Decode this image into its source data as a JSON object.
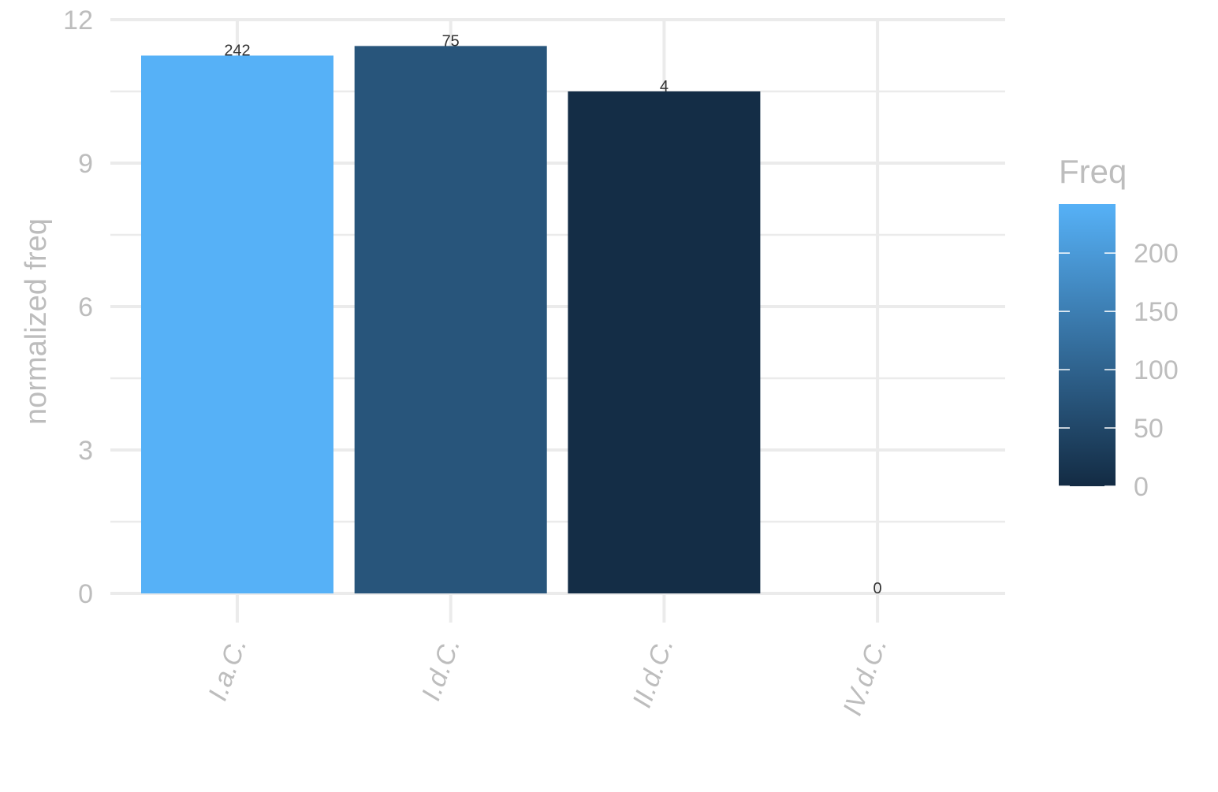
{
  "chart_data": {
    "type": "bar",
    "categories": [
      "I.a.C.",
      "I.d.C.",
      "II.d.C.",
      "IV.d.C."
    ],
    "values": [
      11.25,
      11.45,
      10.5,
      0
    ],
    "freq": [
      242,
      75,
      4,
      0
    ],
    "bar_labels": [
      "242",
      "75",
      "4",
      "0"
    ],
    "title": "",
    "xlabel": "",
    "ylabel": "normalized freq",
    "ylim": [
      0,
      12
    ],
    "yticks": [
      0,
      3,
      6,
      9,
      12
    ],
    "grid": true,
    "legend": {
      "title": "Freq",
      "position": "right",
      "type": "colorbar",
      "range": [
        0,
        242
      ],
      "ticks": [
        0,
        50,
        100,
        150,
        200
      ],
      "tick_labels": [
        "0",
        "50",
        "100",
        "150",
        "200"
      ],
      "low_color": "#132B43",
      "high_color": "#56B1F7"
    }
  }
}
